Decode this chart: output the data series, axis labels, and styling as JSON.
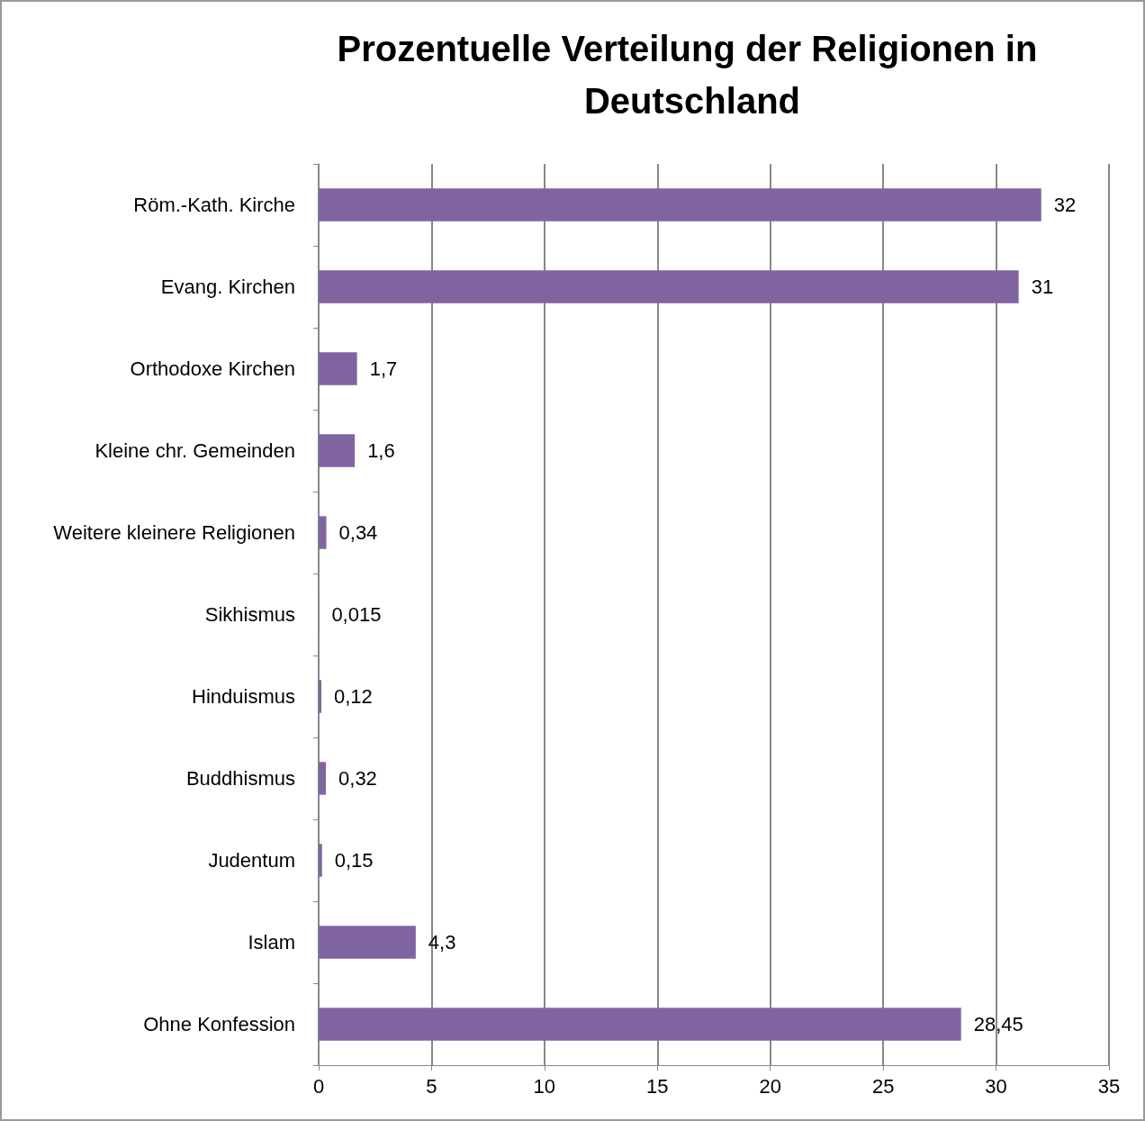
{
  "chart_data": {
    "type": "bar",
    "orientation": "horizontal",
    "title": "Prozentuelle Verteilung der Religionen in Deutschland",
    "categories": [
      "Röm.-Kath. Kirche",
      "Evang. Kirchen",
      "Orthodoxe Kirchen",
      "Kleine chr. Gemeinden",
      "Weitere kleinere Religionen",
      "Sikhismus",
      "Hinduismus",
      "Buddhismus",
      "Judentum",
      "Islam",
      "Ohne Konfession"
    ],
    "values": [
      32,
      31,
      1.7,
      1.6,
      0.34,
      0.015,
      0.12,
      0.32,
      0.15,
      4.3,
      28.45
    ],
    "value_labels": [
      "32",
      "31",
      "1,7",
      "1,6",
      "0,34",
      "0,015",
      "0,12",
      "0,32",
      "0,15",
      "4,3",
      "28,45"
    ],
    "color": "#8064a2",
    "xlim": [
      0,
      35
    ],
    "xticks": [
      0,
      5,
      10,
      15,
      20,
      25,
      30,
      35
    ],
    "grid": "x"
  }
}
